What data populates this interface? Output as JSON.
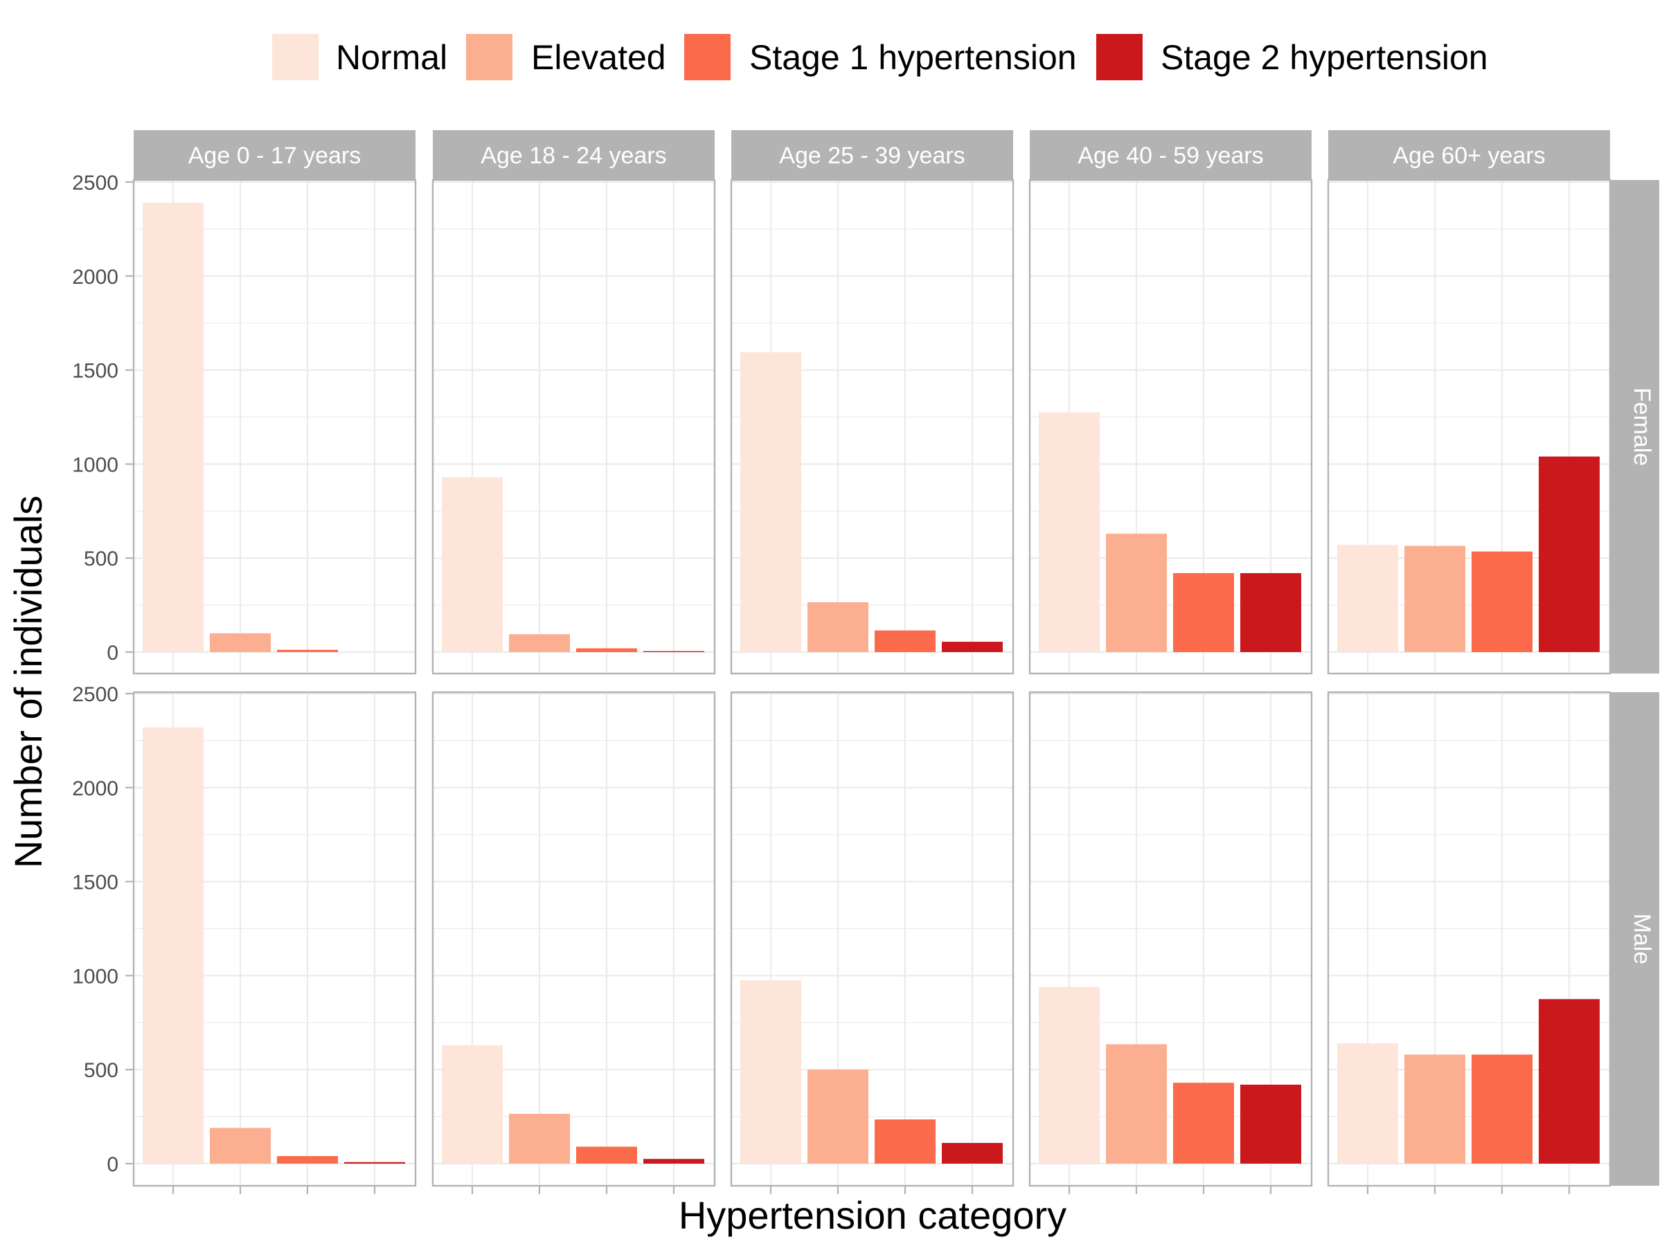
{
  "chart_data": {
    "type": "bar",
    "xlabel": "Hypertension category",
    "ylabel": "Number of individuals",
    "ylim": [
      0,
      2500
    ],
    "y_ticks": [
      0,
      500,
      1000,
      1500,
      2000,
      2500
    ],
    "grid": true,
    "legend_position": "top",
    "categories": [
      "Normal",
      "Elevated",
      "Stage 1 hypertension",
      "Stage 2 hypertension"
    ],
    "colors": [
      "#fee5d9",
      "#fcae91",
      "#fb6a4a",
      "#cb181d"
    ],
    "age_groups": [
      "Age 0 - 17 years",
      "Age 18 - 24 years",
      "Age 25 - 39 years",
      "Age 40 - 59 years",
      "Age 60+ years"
    ],
    "sexes": [
      "Female",
      "Male"
    ],
    "values": {
      "Female": [
        [
          2390,
          100,
          12,
          0
        ],
        [
          930,
          95,
          20,
          5
        ],
        [
          1595,
          265,
          115,
          55
        ],
        [
          1275,
          630,
          420,
          420
        ],
        [
          570,
          565,
          535,
          1040
        ]
      ],
      "Male": [
        [
          2320,
          190,
          40,
          8
        ],
        [
          630,
          265,
          90,
          25
        ],
        [
          975,
          500,
          235,
          110
        ],
        [
          940,
          635,
          430,
          420
        ],
        [
          640,
          580,
          580,
          875
        ]
      ]
    }
  }
}
